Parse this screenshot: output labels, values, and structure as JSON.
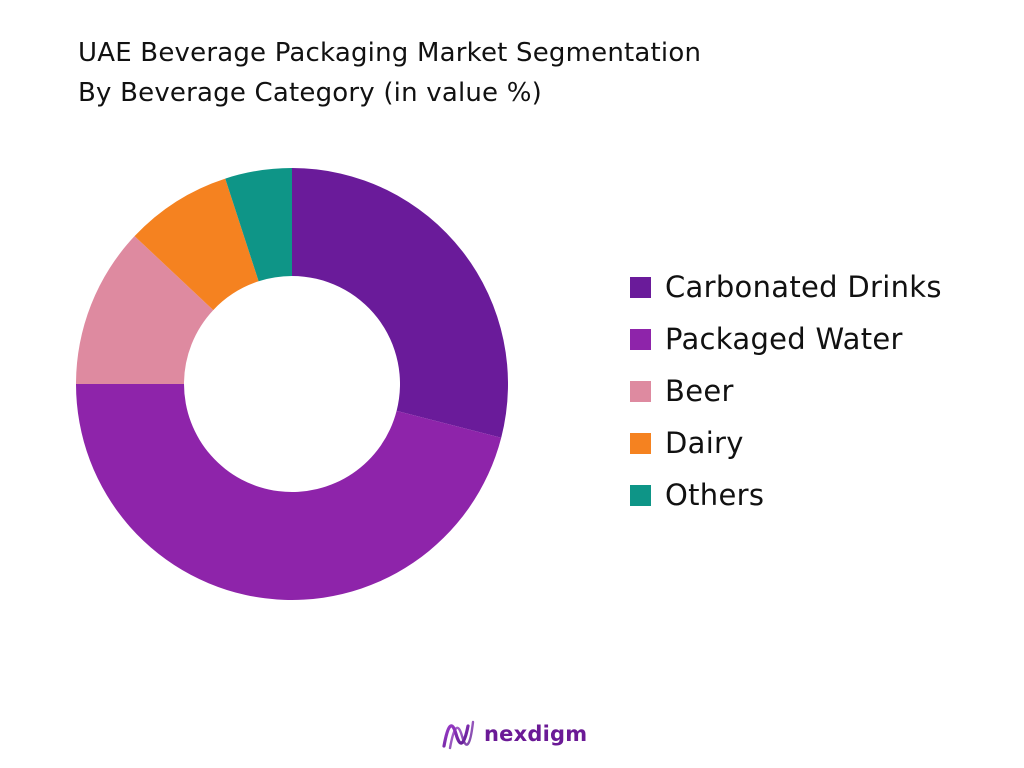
{
  "chart_data": {
    "type": "pie",
    "title": "UAE Beverage Packaging Market Segmentation",
    "subtitle": "By Beverage Category (in value %)",
    "categories": [
      "Carbonated Drinks",
      "Packaged Water",
      "Beer",
      "Dairy",
      "Others"
    ],
    "values": [
      29,
      46,
      12,
      8,
      5
    ],
    "colors": [
      "#6a1b9a",
      "#8e24aa",
      "#de8aa0",
      "#f58220",
      "#0e9587"
    ],
    "legend_position": "right",
    "donut": true,
    "start": "top",
    "direction": "clockwise"
  },
  "logo": {
    "text": "nexdigm"
  }
}
